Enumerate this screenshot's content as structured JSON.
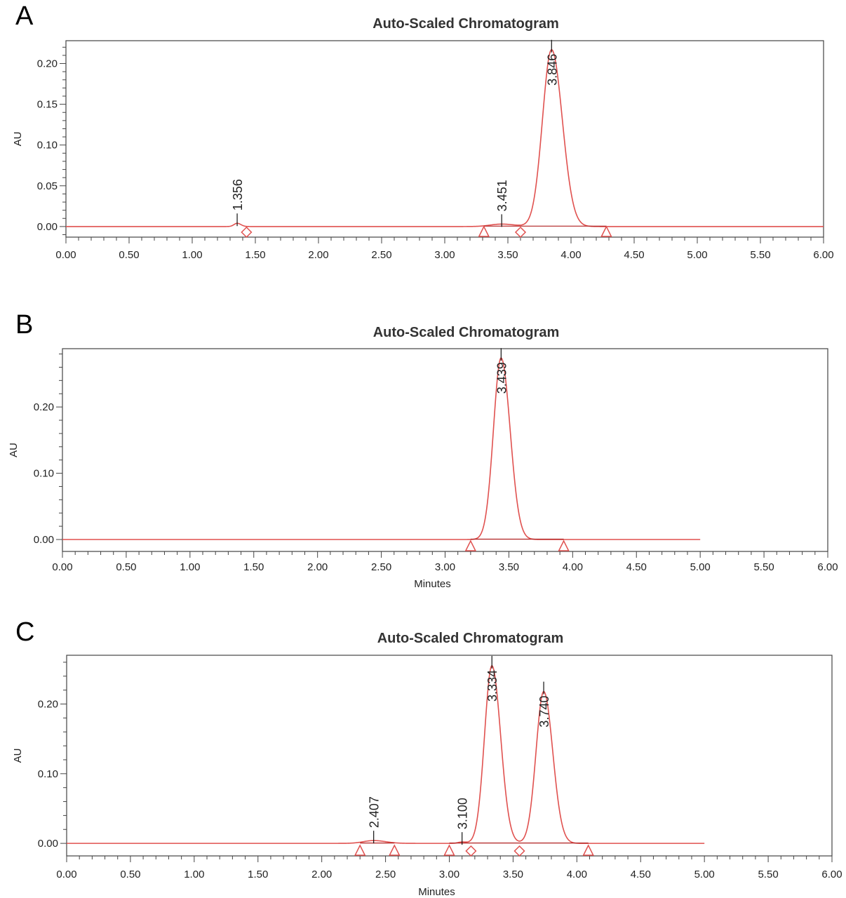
{
  "chart_data": [
    {
      "type": "line",
      "panel": "A",
      "title": "Auto-Scaled Chromatogram",
      "xlabel": "",
      "ylabel": "AU",
      "xlim": [
        0,
        6
      ],
      "ylim": [
        -0.013,
        0.228
      ],
      "x_ticks": [
        "0.00",
        "0.50",
        "1.00",
        "1.50",
        "2.00",
        "2.50",
        "3.00",
        "3.50",
        "4.00",
        "4.50",
        "5.00",
        "5.50",
        "6.00"
      ],
      "y_ticks": [
        "0.00",
        "0.05",
        "0.10",
        "0.15",
        "0.20"
      ],
      "y_tick_values": [
        0,
        0.05,
        0.1,
        0.15,
        0.2
      ],
      "run_end": 6.0,
      "peaks": [
        {
          "rt": 1.356,
          "label": "1.356",
          "height": 0.004,
          "sigma": 0.025
        },
        {
          "rt": 3.451,
          "label": "3.451",
          "height": 0.003,
          "sigma": 0.09
        },
        {
          "rt": 3.846,
          "label": "3.846",
          "height": 0.217,
          "sigma": 0.072
        }
      ],
      "triangle_markers": [
        3.31,
        4.28
      ],
      "diamond_markers": [
        1.43,
        3.6
      ],
      "baselines": [
        [
          3.31,
          3.6
        ],
        [
          3.6,
          4.28
        ]
      ]
    },
    {
      "type": "line",
      "panel": "B",
      "title": "Auto-Scaled Chromatogram",
      "xlabel": "Minutes",
      "ylabel": "AU",
      "xlim": [
        0,
        6
      ],
      "ylim": [
        -0.018,
        0.288
      ],
      "x_ticks": [
        "0.00",
        "0.50",
        "1.00",
        "1.50",
        "2.00",
        "2.50",
        "3.00",
        "3.50",
        "4.00",
        "4.50",
        "5.00",
        "5.50",
        "6.00"
      ],
      "y_ticks": [
        "0.00",
        "0.10",
        "0.20"
      ],
      "y_tick_values": [
        0,
        0.1,
        0.2
      ],
      "run_end": 5.0,
      "peaks": [
        {
          "rt": 3.439,
          "label": "3.439",
          "height": 0.274,
          "sigma": 0.06
        }
      ],
      "triangle_markers": [
        3.2,
        3.93
      ],
      "diamond_markers": [],
      "baselines": [
        [
          3.2,
          3.93
        ]
      ]
    },
    {
      "type": "line",
      "panel": "C",
      "title": "Auto-Scaled Chromatogram",
      "xlabel": "Minutes",
      "ylabel": "AU",
      "xlim": [
        0,
        6
      ],
      "ylim": [
        -0.018,
        0.27
      ],
      "x_ticks": [
        "0.00",
        "0.50",
        "1.00",
        "1.50",
        "2.00",
        "2.50",
        "3.00",
        "3.50",
        "4.00",
        "4.50",
        "5.00",
        "5.50",
        "6.00"
      ],
      "y_ticks": [
        "0.00",
        "0.10",
        "0.20"
      ],
      "y_tick_values": [
        0,
        0.1,
        0.2
      ],
      "run_end": 5.0,
      "peaks": [
        {
          "rt": 2.407,
          "label": "2.407",
          "height": 0.004,
          "sigma": 0.08
        },
        {
          "rt": 3.1,
          "label": "3.100",
          "height": 0.002,
          "sigma": 0.03
        },
        {
          "rt": 3.334,
          "label": "3.334",
          "height": 0.255,
          "sigma": 0.058
        },
        {
          "rt": 3.74,
          "label": "3.740",
          "height": 0.218,
          "sigma": 0.06
        }
      ],
      "triangle_markers": [
        2.3,
        2.57,
        3.0,
        4.09
      ],
      "diamond_markers": [
        3.17,
        3.55
      ],
      "baselines": [
        [
          2.3,
          2.57
        ],
        [
          3.0,
          3.17
        ],
        [
          3.17,
          3.55
        ],
        [
          3.55,
          4.09
        ]
      ]
    }
  ]
}
